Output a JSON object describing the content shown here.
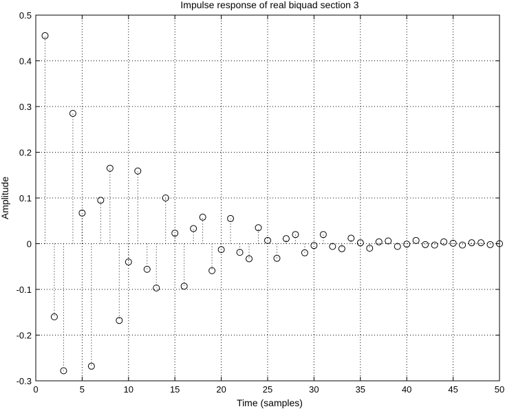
{
  "chart_data": {
    "type": "scatter",
    "style": "stem",
    "title": "Impulse response of real biquad section 3",
    "xlabel": "Time (samples)",
    "ylabel": "Amplitude",
    "xlim": [
      0,
      50
    ],
    "ylim": [
      -0.3,
      0.5
    ],
    "xticks": [
      0,
      5,
      10,
      15,
      20,
      25,
      30,
      35,
      40,
      45,
      50
    ],
    "yticks": [
      -0.3,
      -0.2,
      -0.1,
      0,
      0.1,
      0.2,
      0.3,
      0.4,
      0.5
    ],
    "grid": true,
    "marker": "circle",
    "color": "#000000",
    "x": [
      1,
      2,
      3,
      4,
      5,
      6,
      7,
      8,
      9,
      10,
      11,
      12,
      13,
      14,
      15,
      16,
      17,
      18,
      19,
      20,
      21,
      22,
      23,
      24,
      25,
      26,
      27,
      28,
      29,
      30,
      31,
      32,
      33,
      34,
      35,
      36,
      37,
      38,
      39,
      40,
      41,
      42,
      43,
      44,
      45,
      46,
      47,
      48,
      49,
      50
    ],
    "values": [
      0.455,
      -0.16,
      -0.278,
      0.285,
      0.067,
      -0.268,
      0.095,
      0.165,
      -0.168,
      -0.04,
      0.159,
      -0.056,
      -0.097,
      0.1,
      0.023,
      -0.093,
      0.033,
      0.058,
      -0.059,
      -0.013,
      0.055,
      -0.019,
      -0.033,
      0.035,
      0.007,
      -0.032,
      0.011,
      0.02,
      -0.02,
      -0.004,
      0.02,
      -0.006,
      -0.011,
      0.012,
      0.002,
      -0.01,
      0.004,
      0.006,
      -0.006,
      -0.001,
      0.007,
      -0.002,
      -0.003,
      0.004,
      0.001,
      -0.003,
      0.002,
      0.002,
      -0.002,
      0.0
    ]
  }
}
